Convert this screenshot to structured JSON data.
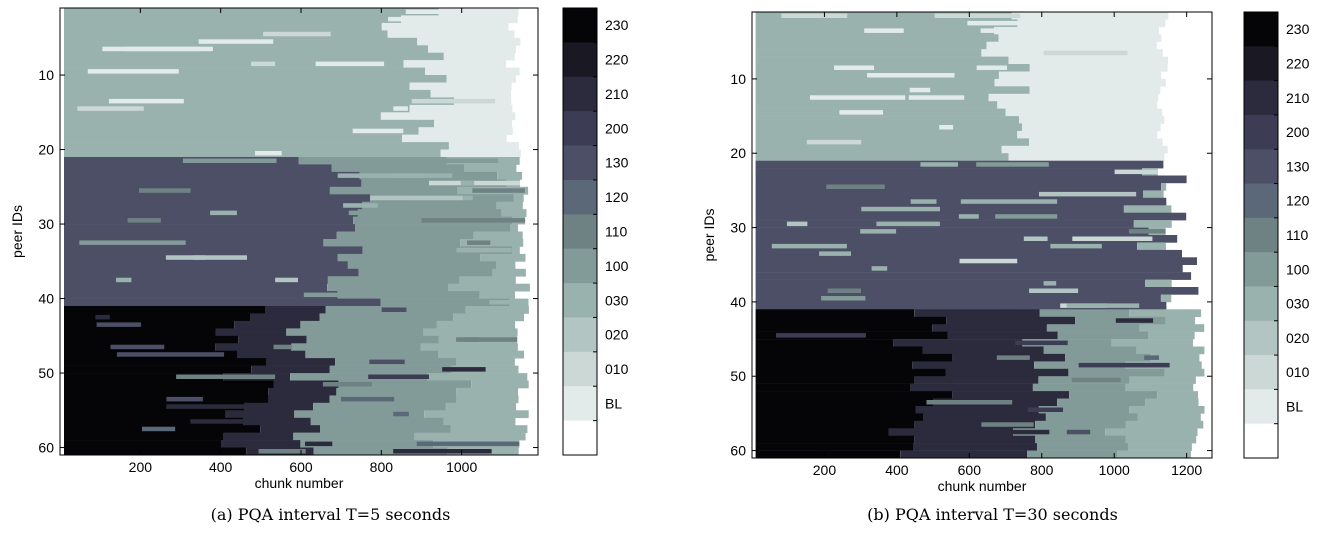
{
  "palette": {
    "230": "#050507",
    "220": "#191823",
    "210": "#2b2b3d",
    "200": "#3c3c55",
    "130": "#4c4f66",
    "120": "#5a6877",
    "110": "#6f8283",
    "100": "#839b98",
    "030": "#99b2ae",
    "020": "#b3c5c3",
    "010": "#ccd8d6",
    "BL": "#e3ebea",
    "none": "#ffffff"
  },
  "chart_data": [
    {
      "type": "heatmap",
      "caption": "(a) PQA interval T=5 seconds",
      "xlabel": "chunk number",
      "ylabel": "peer IDs",
      "xlim": [
        0,
        1190
      ],
      "ylim": [
        1,
        61
      ],
      "x_ticks": [
        "200",
        "400",
        "600",
        "800",
        "1000"
      ],
      "y_ticks": [
        "10",
        "20",
        "30",
        "40",
        "50",
        "60"
      ],
      "colorbar_labels": [
        "230",
        "220",
        "210",
        "200",
        "130",
        "120",
        "110",
        "100",
        "030",
        "020",
        "010",
        "BL",
        ""
      ],
      "grid": false,
      "bands": [
        {
          "peers": [
            1,
            20
          ],
          "start_level": "030",
          "transitions": [
            [
              900,
              "BL"
            ]
          ],
          "chunks_end": 1150
        },
        {
          "peers": [
            21,
            40
          ],
          "start_level": "130",
          "transitions": [
            [
              700,
              "100"
            ],
            [
              1050,
              "030"
            ]
          ],
          "chunks_end": 1170
        },
        {
          "peers": [
            41,
            60
          ],
          "start_level": "230",
          "transitions": [
            [
              450,
              "210"
            ],
            [
              620,
              "100"
            ],
            [
              950,
              "030"
            ]
          ],
          "chunks_end": 1170
        }
      ]
    },
    {
      "type": "heatmap",
      "caption": "(b) PQA interval T=30 seconds",
      "xlabel": "chunk number",
      "ylabel": "peer IDs",
      "xlim": [
        0,
        1270
      ],
      "ylim": [
        1,
        61
      ],
      "x_ticks": [
        "200",
        "400",
        "600",
        "800",
        "1000",
        "1200"
      ],
      "y_ticks": [
        "10",
        "20",
        "30",
        "40",
        "50",
        "60"
      ],
      "colorbar_labels": [
        "230",
        "220",
        "210",
        "200",
        "130",
        "120",
        "110",
        "100",
        "030",
        "020",
        "010",
        "BL",
        ""
      ],
      "grid": false,
      "bands": [
        {
          "peers": [
            1,
            20
          ],
          "start_level": "030",
          "transitions": [
            [
              690,
              "BL"
            ]
          ],
          "chunks_end": 1150
        },
        {
          "peers": [
            21,
            40
          ],
          "start_level": "130",
          "transitions": [
            [
              1130,
              "030"
            ]
          ],
          "chunks_end": 1160
        },
        {
          "peers": [
            41,
            60
          ],
          "start_level": "230",
          "transitions": [
            [
              460,
              "210"
            ],
            [
              800,
              "100"
            ],
            [
              1050,
              "030"
            ]
          ],
          "chunks_end": 1250
        }
      ]
    }
  ]
}
